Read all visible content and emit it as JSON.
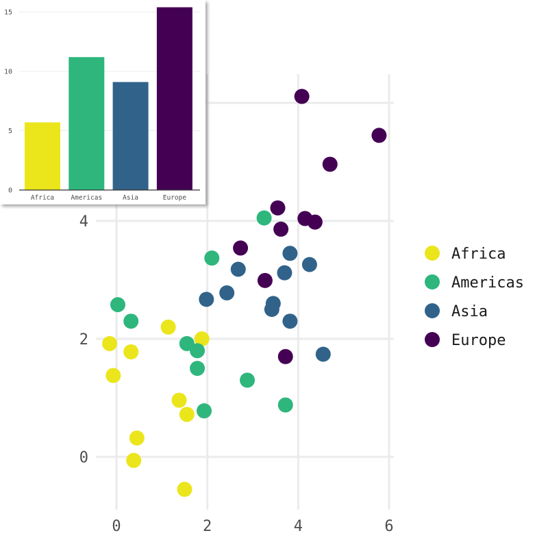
{
  "chart_data": [
    {
      "type": "scatter",
      "title": "",
      "xlabel": "",
      "ylabel": "",
      "xlim": [
        -0.35,
        6
      ],
      "ylim": [
        -0.85,
        6.5
      ],
      "x_ticks": [
        "0",
        "2",
        "4",
        "6"
      ],
      "y_ticks": [
        "0",
        "2",
        "4"
      ],
      "grid": true,
      "legend_position": "right",
      "series": [
        {
          "name": "Africa",
          "color": "#EBE51C",
          "points": [
            {
              "x": -0.15,
              "y": 1.92
            },
            {
              "x": 0.32,
              "y": 1.78
            },
            {
              "x": -0.07,
              "y": 1.38
            },
            {
              "x": 1.14,
              "y": 2.2
            },
            {
              "x": 1.88,
              "y": 2.0
            },
            {
              "x": 1.38,
              "y": 0.96
            },
            {
              "x": 1.55,
              "y": 0.72
            },
            {
              "x": 0.45,
              "y": 0.32
            },
            {
              "x": 0.38,
              "y": -0.06
            },
            {
              "x": 1.5,
              "y": -0.55
            }
          ]
        },
        {
          "name": "Americas",
          "color": "#2EB67D",
          "points": [
            {
              "x": 0.03,
              "y": 2.58
            },
            {
              "x": 0.32,
              "y": 2.3
            },
            {
              "x": 1.55,
              "y": 1.92
            },
            {
              "x": 1.78,
              "y": 1.8
            },
            {
              "x": 1.78,
              "y": 1.5
            },
            {
              "x": 2.1,
              "y": 3.37
            },
            {
              "x": 3.25,
              "y": 4.05
            },
            {
              "x": 2.88,
              "y": 1.3
            },
            {
              "x": 1.93,
              "y": 0.78
            },
            {
              "x": 3.72,
              "y": 0.88
            }
          ]
        },
        {
          "name": "Asia",
          "color": "#31638A",
          "points": [
            {
              "x": 1.98,
              "y": 2.67
            },
            {
              "x": 2.43,
              "y": 2.78
            },
            {
              "x": 2.68,
              "y": 3.18
            },
            {
              "x": 3.45,
              "y": 2.6
            },
            {
              "x": 3.42,
              "y": 2.5
            },
            {
              "x": 3.7,
              "y": 3.12
            },
            {
              "x": 3.82,
              "y": 3.45
            },
            {
              "x": 4.25,
              "y": 3.26
            },
            {
              "x": 3.82,
              "y": 2.3
            },
            {
              "x": 4.55,
              "y": 1.74
            }
          ]
        },
        {
          "name": "Europe",
          "color": "#440154",
          "points": [
            {
              "x": 4.08,
              "y": 6.11
            },
            {
              "x": 5.78,
              "y": 5.45
            },
            {
              "x": 4.7,
              "y": 4.96
            },
            {
              "x": 3.55,
              "y": 4.22
            },
            {
              "x": 4.15,
              "y": 4.04
            },
            {
              "x": 4.37,
              "y": 3.98
            },
            {
              "x": 3.62,
              "y": 3.86
            },
            {
              "x": 2.73,
              "y": 3.54
            },
            {
              "x": 3.27,
              "y": 2.99
            },
            {
              "x": 3.72,
              "y": 1.7
            }
          ]
        }
      ]
    },
    {
      "type": "bar",
      "title": "",
      "xlabel": "",
      "ylabel": "",
      "categories": [
        "Africa",
        "Americas",
        "Asia",
        "Europe"
      ],
      "values": [
        5.7,
        11.2,
        9.1,
        15.4
      ],
      "colors": [
        "#EBE51C",
        "#2EB67D",
        "#31638A",
        "#440154"
      ],
      "y_ticks": [
        "0",
        "5",
        "10",
        "15"
      ],
      "ylim": [
        0,
        16
      ],
      "grid": true
    }
  ]
}
